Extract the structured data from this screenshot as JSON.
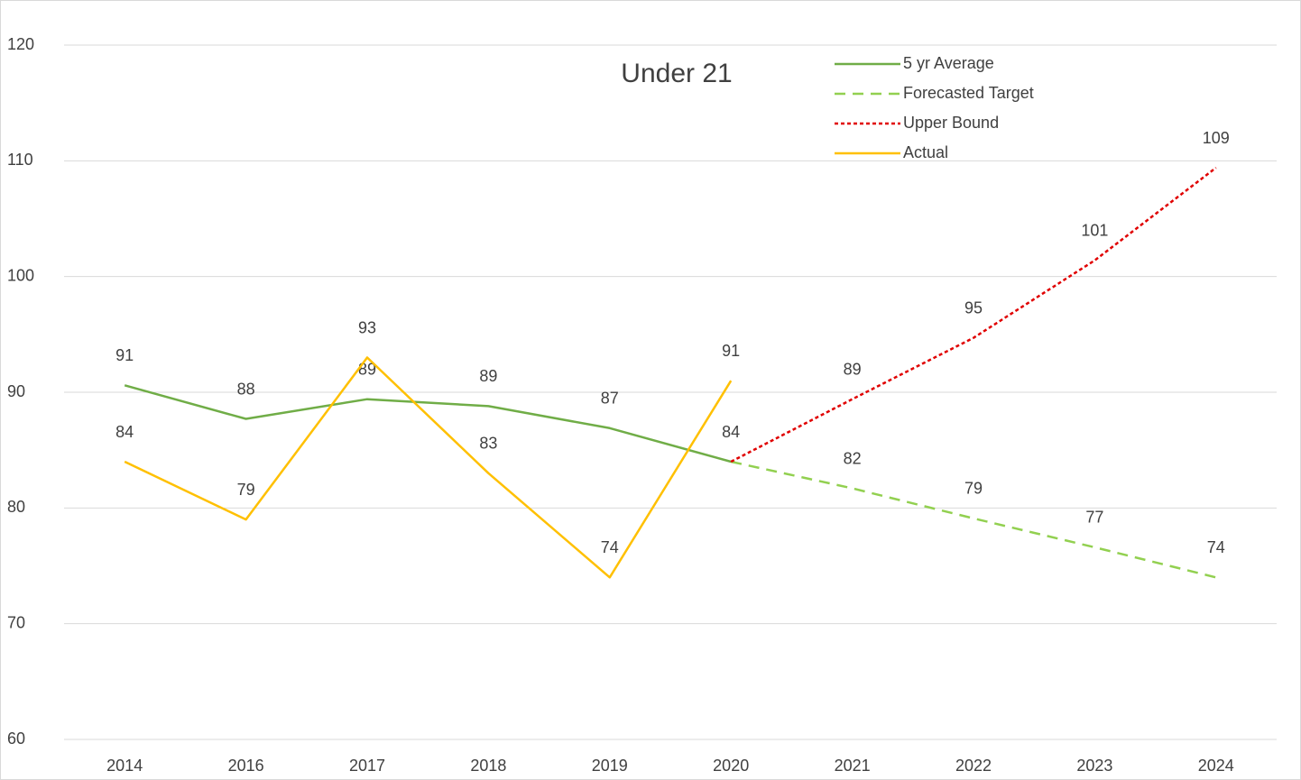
{
  "chart_data": {
    "type": "line",
    "title": "Under 21",
    "categories": [
      "2014",
      "2016",
      "2017",
      "2018",
      "2019",
      "2020",
      "2021",
      "2022",
      "2023",
      "2024"
    ],
    "series": [
      {
        "name": "5 yr Average",
        "color": "#70ad47",
        "style": "solid",
        "values": [
          90.6,
          87.7,
          89.4,
          88.8,
          86.9,
          84,
          null,
          null,
          null,
          null
        ],
        "value_labels": [
          "91",
          "88",
          "89",
          "89",
          "87",
          "84",
          null,
          null,
          null,
          null
        ]
      },
      {
        "name": "Forecasted Target",
        "color": "#92d050",
        "style": "dashed",
        "values": [
          null,
          null,
          null,
          null,
          null,
          84,
          81.7,
          79.1,
          76.6,
          74
        ],
        "value_labels": [
          null,
          null,
          null,
          null,
          null,
          null,
          "82",
          "79",
          "77",
          "74"
        ]
      },
      {
        "name": "Upper Bound",
        "color": "#e00000",
        "style": "dotted",
        "values": [
          null,
          null,
          null,
          null,
          null,
          84,
          89.4,
          94.7,
          101.4,
          109.4
        ],
        "value_labels": [
          null,
          null,
          null,
          null,
          null,
          null,
          "89",
          "95",
          "101",
          "109"
        ]
      },
      {
        "name": "Actual",
        "color": "#ffc000",
        "style": "solid",
        "values": [
          84,
          79,
          93,
          83,
          74,
          91,
          null,
          null,
          null,
          null
        ]
      }
    ],
    "ylim": [
      60,
      120
    ],
    "yticks": [
      60,
      70,
      80,
      90,
      100,
      110,
      120
    ],
    "grid": true,
    "legend": "upper right"
  }
}
